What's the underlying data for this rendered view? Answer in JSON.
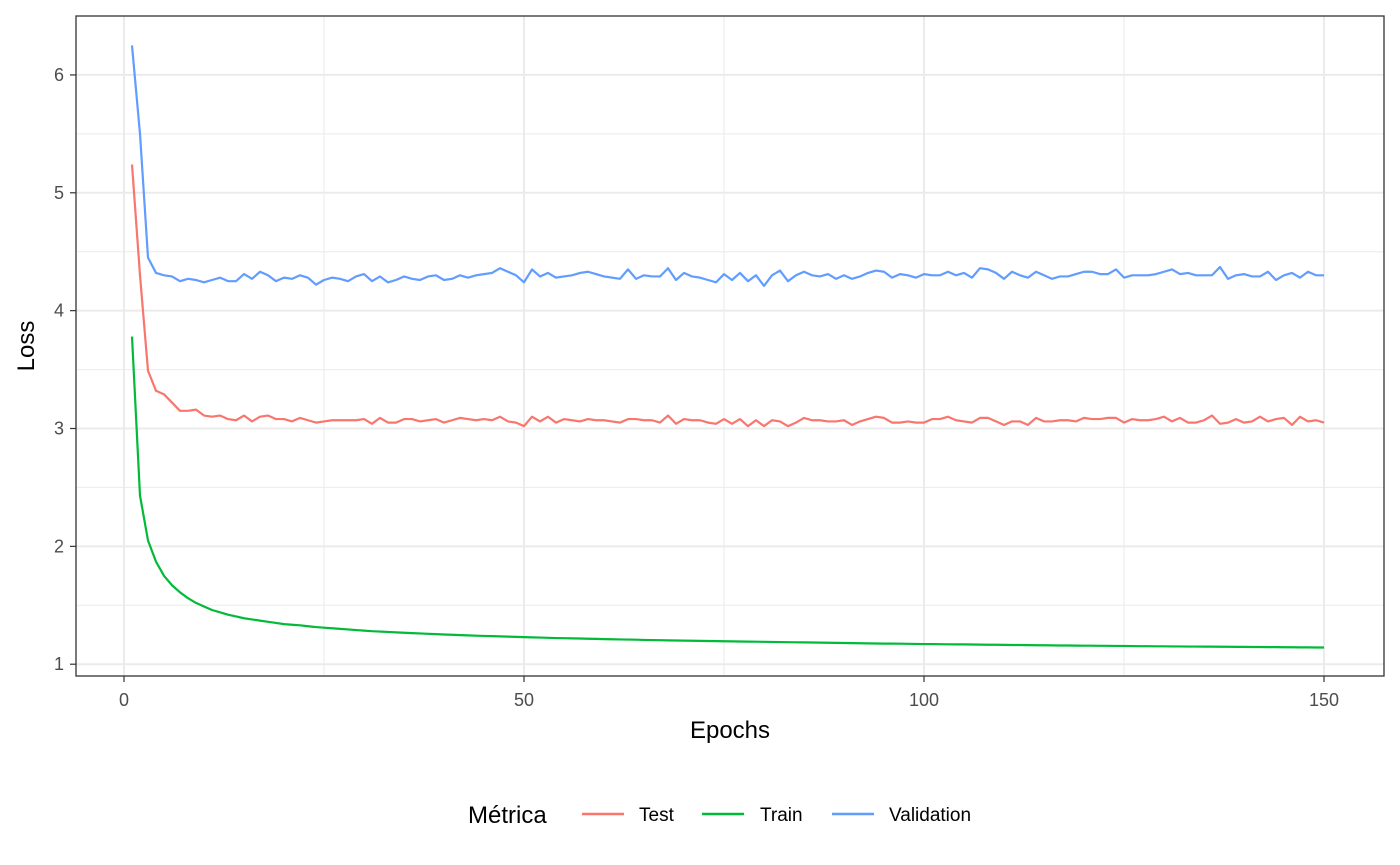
{
  "chart_data": {
    "type": "line",
    "xlabel": "Epochs",
    "ylabel": "Loss",
    "xlim": [
      -6,
      157.5
    ],
    "ylim": [
      0.9,
      6.5
    ],
    "x_ticks": [
      0,
      50,
      100,
      150
    ],
    "y_ticks": [
      1,
      2,
      3,
      4,
      5,
      6
    ],
    "grid": true,
    "legend": {
      "title": "Métrica",
      "position": "bottom"
    },
    "colors": {
      "Test": "#F8766D",
      "Train": "#00BA38",
      "Validation": "#619CFF"
    },
    "series": [
      {
        "name": "Test",
        "color": "#F8766D",
        "x_start": 1,
        "values": [
          5.24,
          4.3,
          3.49,
          3.32,
          3.29,
          3.22,
          3.15,
          3.15,
          3.16,
          3.11,
          3.1,
          3.11,
          3.08,
          3.07,
          3.11,
          3.06,
          3.1,
          3.11,
          3.08,
          3.08,
          3.06,
          3.09,
          3.07,
          3.05,
          3.06,
          3.07,
          3.07,
          3.07,
          3.07,
          3.08,
          3.04,
          3.09,
          3.05,
          3.05,
          3.08,
          3.08,
          3.06,
          3.07,
          3.08,
          3.05,
          3.07,
          3.09,
          3.08,
          3.07,
          3.08,
          3.07,
          3.1,
          3.06,
          3.05,
          3.02,
          3.1,
          3.06,
          3.1,
          3.05,
          3.08,
          3.07,
          3.06,
          3.08,
          3.07,
          3.07,
          3.06,
          3.05,
          3.08,
          3.08,
          3.07,
          3.07,
          3.05,
          3.11,
          3.04,
          3.08,
          3.07,
          3.07,
          3.05,
          3.04,
          3.08,
          3.04,
          3.08,
          3.02,
          3.07,
          3.02,
          3.07,
          3.06,
          3.02,
          3.05,
          3.09,
          3.07,
          3.07,
          3.06,
          3.06,
          3.07,
          3.03,
          3.06,
          3.08,
          3.1,
          3.09,
          3.05,
          3.05,
          3.06,
          3.05,
          3.05,
          3.08,
          3.08,
          3.1,
          3.07,
          3.06,
          3.05,
          3.09,
          3.09,
          3.06,
          3.03,
          3.06,
          3.06,
          3.03,
          3.09,
          3.06,
          3.06,
          3.07,
          3.07,
          3.06,
          3.09,
          3.08,
          3.08,
          3.09,
          3.09,
          3.05,
          3.08,
          3.07,
          3.07,
          3.08,
          3.1,
          3.06,
          3.09,
          3.05,
          3.05,
          3.07,
          3.11,
          3.04,
          3.05,
          3.08,
          3.05,
          3.06,
          3.1,
          3.06,
          3.08,
          3.09,
          3.03,
          3.1,
          3.06,
          3.07,
          3.05
        ]
      },
      {
        "name": "Train",
        "color": "#00BA38",
        "x_start": 1,
        "values": [
          3.78,
          2.43,
          2.05,
          1.87,
          1.75,
          1.67,
          1.61,
          1.56,
          1.52,
          1.49,
          1.46,
          1.44,
          1.42,
          1.405,
          1.39,
          1.38,
          1.37,
          1.36,
          1.35,
          1.34,
          1.335,
          1.33,
          1.322,
          1.315,
          1.31,
          1.305,
          1.3,
          1.295,
          1.29,
          1.285,
          1.28,
          1.277,
          1.274,
          1.27,
          1.267,
          1.264,
          1.261,
          1.258,
          1.255,
          1.252,
          1.25,
          1.247,
          1.245,
          1.242,
          1.24,
          1.238,
          1.236,
          1.234,
          1.232,
          1.23,
          1.228,
          1.226,
          1.224,
          1.222,
          1.221,
          1.219,
          1.218,
          1.216,
          1.215,
          1.213,
          1.212,
          1.21,
          1.209,
          1.208,
          1.206,
          1.205,
          1.204,
          1.202,
          1.201,
          1.2,
          1.199,
          1.198,
          1.197,
          1.196,
          1.195,
          1.194,
          1.193,
          1.192,
          1.191,
          1.19,
          1.189,
          1.188,
          1.187,
          1.186,
          1.185,
          1.184,
          1.183,
          1.182,
          1.181,
          1.18,
          1.179,
          1.178,
          1.177,
          1.176,
          1.175,
          1.175,
          1.174,
          1.173,
          1.172,
          1.171,
          1.171,
          1.17,
          1.169,
          1.168,
          1.168,
          1.167,
          1.166,
          1.165,
          1.165,
          1.164,
          1.163,
          1.163,
          1.162,
          1.161,
          1.161,
          1.16,
          1.159,
          1.159,
          1.158,
          1.157,
          1.157,
          1.156,
          1.156,
          1.155,
          1.155,
          1.154,
          1.153,
          1.153,
          1.152,
          1.152,
          1.151,
          1.151,
          1.15,
          1.15,
          1.149,
          1.149,
          1.148,
          1.148,
          1.147,
          1.147,
          1.146,
          1.146,
          1.145,
          1.145,
          1.144,
          1.144,
          1.143,
          1.143,
          1.142,
          1.142
        ]
      },
      {
        "name": "Validation",
        "color": "#619CFF",
        "x_start": 1,
        "values": [
          6.25,
          5.5,
          4.45,
          4.32,
          4.3,
          4.29,
          4.25,
          4.27,
          4.26,
          4.24,
          4.26,
          4.28,
          4.25,
          4.25,
          4.31,
          4.27,
          4.33,
          4.3,
          4.25,
          4.28,
          4.27,
          4.3,
          4.28,
          4.22,
          4.26,
          4.28,
          4.27,
          4.25,
          4.29,
          4.31,
          4.25,
          4.29,
          4.24,
          4.26,
          4.29,
          4.27,
          4.26,
          4.29,
          4.3,
          4.26,
          4.27,
          4.3,
          4.28,
          4.3,
          4.31,
          4.32,
          4.36,
          4.33,
          4.3,
          4.24,
          4.35,
          4.29,
          4.32,
          4.28,
          4.29,
          4.3,
          4.32,
          4.33,
          4.31,
          4.29,
          4.28,
          4.27,
          4.35,
          4.27,
          4.3,
          4.29,
          4.29,
          4.36,
          4.26,
          4.32,
          4.29,
          4.28,
          4.26,
          4.24,
          4.31,
          4.26,
          4.32,
          4.25,
          4.3,
          4.21,
          4.3,
          4.34,
          4.25,
          4.3,
          4.33,
          4.3,
          4.29,
          4.31,
          4.27,
          4.3,
          4.27,
          4.29,
          4.32,
          4.34,
          4.33,
          4.28,
          4.31,
          4.3,
          4.28,
          4.31,
          4.3,
          4.3,
          4.33,
          4.3,
          4.32,
          4.28,
          4.36,
          4.35,
          4.32,
          4.27,
          4.33,
          4.3,
          4.28,
          4.33,
          4.3,
          4.27,
          4.29,
          4.29,
          4.31,
          4.33,
          4.33,
          4.31,
          4.31,
          4.35,
          4.28,
          4.3,
          4.3,
          4.3,
          4.31,
          4.33,
          4.35,
          4.31,
          4.32,
          4.3,
          4.3,
          4.3,
          4.37,
          4.27,
          4.3,
          4.31,
          4.29,
          4.29,
          4.33,
          4.26,
          4.3,
          4.32,
          4.28,
          4.33,
          4.3,
          4.3
        ]
      }
    ]
  }
}
